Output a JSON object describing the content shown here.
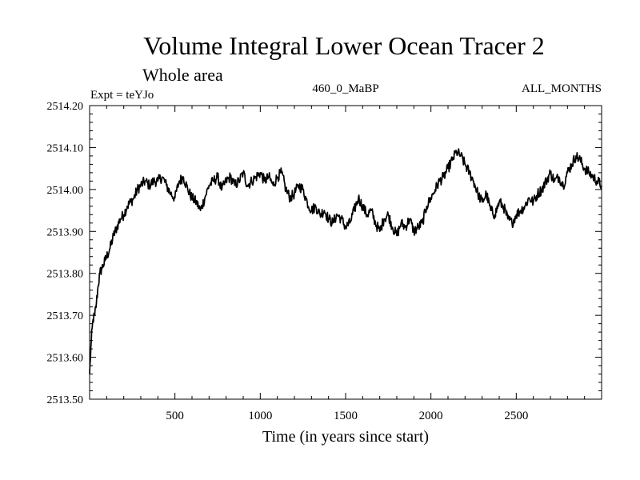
{
  "chart_data": {
    "type": "line",
    "title": "Volume Integral Lower Ocean Tracer 2",
    "subtitle": "Whole area",
    "left_label": "Expt = teYJo",
    "center_label": "460_0_MaBP",
    "right_label": "ALL_MONTHS",
    "xlabel": "Time (in years since start)",
    "ylabel": "",
    "xlim": [
      0,
      3000
    ],
    "ylim": [
      2513.5,
      2514.2
    ],
    "x_ticks": [
      500,
      1000,
      1500,
      2000,
      2500
    ],
    "x_tick_labels": [
      "500",
      "1000",
      "1500",
      "2000",
      "2500"
    ],
    "y_ticks": [
      2513.5,
      2513.6,
      2513.7,
      2513.8,
      2513.9,
      2514.0,
      2514.1,
      2514.2
    ],
    "y_tick_labels": [
      "2513.50",
      "2513.60",
      "2513.70",
      "2513.80",
      "2513.90",
      "2514.00",
      "2514.10",
      "2514.20"
    ],
    "grid": false,
    "series": [
      {
        "name": "Volume Integral Lower Ocean Tracer 2",
        "color": "#000000",
        "x": [
          0,
          10,
          20,
          30,
          40,
          50,
          60,
          70,
          80,
          90,
          100,
          120,
          140,
          160,
          180,
          200,
          220,
          240,
          260,
          280,
          300,
          325,
          350,
          375,
          400,
          425,
          450,
          475,
          500,
          525,
          550,
          575,
          600,
          625,
          650,
          675,
          700,
          725,
          750,
          775,
          800,
          825,
          850,
          875,
          900,
          925,
          950,
          975,
          1000,
          1025,
          1050,
          1075,
          1100,
          1125,
          1150,
          1175,
          1200,
          1225,
          1250,
          1275,
          1300,
          1325,
          1350,
          1375,
          1400,
          1425,
          1450,
          1475,
          1500,
          1525,
          1550,
          1575,
          1600,
          1625,
          1650,
          1675,
          1700,
          1725,
          1750,
          1775,
          1800,
          1825,
          1850,
          1875,
          1900,
          1925,
          1950,
          1975,
          2000,
          2025,
          2050,
          2075,
          2100,
          2125,
          2150,
          2175,
          2200,
          2225,
          2250,
          2275,
          2300,
          2325,
          2350,
          2375,
          2400,
          2425,
          2450,
          2475,
          2500,
          2525,
          2550,
          2575,
          2600,
          2625,
          2650,
          2675,
          2700,
          2725,
          2750,
          2775,
          2800,
          2825,
          2850,
          2875,
          2900,
          2925,
          2950,
          2975,
          3000
        ],
        "y": [
          2513.56,
          2513.64,
          2513.69,
          2513.7,
          2513.73,
          2513.77,
          2513.8,
          2513.81,
          2513.82,
          2513.83,
          2513.84,
          2513.86,
          2513.89,
          2513.91,
          2513.93,
          2513.94,
          2513.96,
          2513.97,
          2513.98,
          2514.0,
          2514.01,
          2514.02,
          2514.01,
          2514.02,
          2514.02,
          2514.03,
          2514.01,
          2513.99,
          2513.98,
          2514.02,
          2514.03,
          2514.0,
          2513.98,
          2513.97,
          2513.95,
          2513.98,
          2514.01,
          2514.02,
          2514.03,
          2514.0,
          2514.02,
          2514.03,
          2514.01,
          2514.02,
          2514.04,
          2514.01,
          2514.02,
          2514.03,
          2514.04,
          2514.02,
          2514.03,
          2514.01,
          2514.03,
          2514.04,
          2514.0,
          2513.98,
          2513.99,
          2514.01,
          2514.0,
          2513.97,
          2513.95,
          2513.96,
          2513.94,
          2513.95,
          2513.93,
          2513.92,
          2513.94,
          2513.93,
          2513.91,
          2513.92,
          2513.95,
          2513.98,
          2513.96,
          2513.94,
          2513.95,
          2513.92,
          2513.9,
          2513.93,
          2513.94,
          2513.91,
          2513.89,
          2513.92,
          2513.91,
          2513.93,
          2513.9,
          2513.91,
          2513.92,
          2513.96,
          2513.98,
          2514.0,
          2514.02,
          2514.03,
          2514.05,
          2514.07,
          2514.09,
          2514.08,
          2514.06,
          2514.04,
          2514.02,
          2513.99,
          2513.97,
          2513.99,
          2513.95,
          2513.94,
          2513.97,
          2513.96,
          2513.93,
          2513.92,
          2513.94,
          2513.95,
          2513.96,
          2513.98,
          2513.97,
          2513.99,
          2514.0,
          2514.02,
          2514.04,
          2514.02,
          2514.03,
          2514.01,
          2514.04,
          2514.06,
          2514.08,
          2514.07,
          2514.05,
          2514.04,
          2514.03,
          2514.02,
          2514.01
        ]
      }
    ]
  }
}
